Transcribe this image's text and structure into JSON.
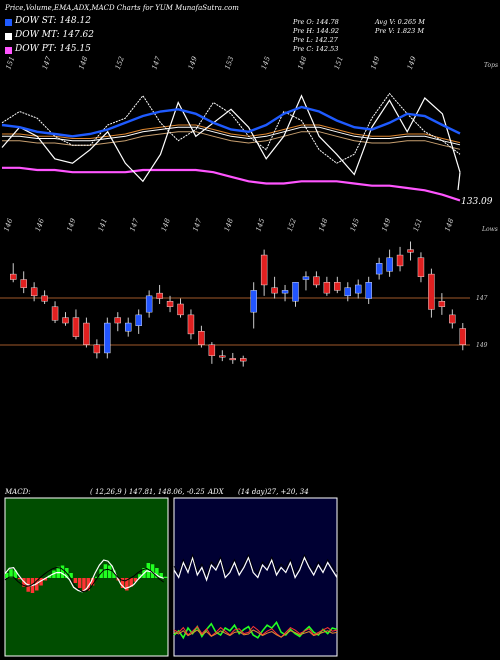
{
  "header": {
    "title": "Price,Volume,EMA,ADX,MACD Charts for YUM MunafaSutra.com"
  },
  "legend": [
    {
      "label": "DOW ST: 148.12",
      "color": "#1f5bff"
    },
    {
      "label": "DOW MT: 147.62",
      "color": "#ffffff"
    },
    {
      "label": "DOW PT: 145.15",
      "color": "#ff55ff"
    }
  ],
  "info": {
    "line1_left": "Pre  O: 144.78",
    "line2_left": "Pre  H: 144.92",
    "line3_left": "Pre  L: 142.27",
    "line4_left": "Pre  C: 142.53",
    "line1_right": "Avg V: 0.265 M",
    "line2_right": "Pre  V: 1.823 M"
  },
  "top_label": "Tops",
  "lower_label": "Lows",
  "price_tag": "133.09",
  "right_labels": [
    "147",
    "149"
  ],
  "macd_label": "MACD:",
  "macd_params": "( 12,26,9 ) 147.81, 148.06, -0.25",
  "adx_label": "ADX",
  "adx_params": "(14 day)27, +20, 34",
  "chart_data": [
    {
      "type": "line",
      "title": "Price,Volume,EMA,ADX,MACD Charts for YUM",
      "top_tick_labels": [
        "151",
        "147",
        "148",
        "152",
        "147",
        "149",
        "153",
        "145",
        "148",
        "151",
        "149",
        "149"
      ],
      "series": [
        {
          "name": "DOW ST",
          "values": [
            148.5,
            148.4,
            148.2,
            148.1,
            148.0,
            148.1,
            148.3,
            148.6,
            148.9,
            149.1,
            149.2,
            149.0,
            148.6,
            148.3,
            148.2,
            148.5,
            149.0,
            149.3,
            149.1,
            148.7,
            148.4,
            148.3,
            148.6,
            149.0,
            148.9,
            148.5,
            148.12
          ]
        },
        {
          "name": "DOW MT",
          "values": [
            148.0,
            148.0,
            147.9,
            147.9,
            147.8,
            147.8,
            147.9,
            148.0,
            148.2,
            148.3,
            148.4,
            148.4,
            148.2,
            148.0,
            147.9,
            148.0,
            148.2,
            148.4,
            148.4,
            148.2,
            148.0,
            147.9,
            147.9,
            148.0,
            148.0,
            147.8,
            147.62
          ]
        },
        {
          "name": "DOW PT",
          "values": [
            146.6,
            146.6,
            146.5,
            146.5,
            146.4,
            146.4,
            146.4,
            146.4,
            146.5,
            146.5,
            146.5,
            146.5,
            146.4,
            146.2,
            146.0,
            145.9,
            145.9,
            146.0,
            146.0,
            146.0,
            145.9,
            145.8,
            145.8,
            145.7,
            145.6,
            145.4,
            145.15
          ]
        }
      ],
      "price_line_label": "133.09"
    },
    {
      "type": "candlestick",
      "bottom_tick_labels": [
        "146",
        "146",
        "149",
        "141",
        "147",
        "148",
        "147",
        "148",
        "145",
        "152",
        "148",
        "145",
        "149",
        "151",
        "148"
      ],
      "levels": [
        147,
        149
      ],
      "candles": [
        {
          "o": 148.6,
          "h": 149.0,
          "l": 148.3,
          "c": 148.4,
          "color": "red"
        },
        {
          "o": 148.4,
          "h": 148.7,
          "l": 147.9,
          "c": 148.1,
          "color": "red"
        },
        {
          "o": 148.1,
          "h": 148.3,
          "l": 147.6,
          "c": 147.8,
          "color": "red"
        },
        {
          "o": 147.8,
          "h": 148.0,
          "l": 147.5,
          "c": 147.6,
          "color": "red"
        },
        {
          "o": 147.4,
          "h": 147.6,
          "l": 146.8,
          "c": 146.9,
          "color": "red"
        },
        {
          "o": 147.0,
          "h": 147.2,
          "l": 146.7,
          "c": 146.8,
          "color": "red"
        },
        {
          "o": 147.0,
          "h": 147.3,
          "l": 146.2,
          "c": 146.3,
          "color": "red"
        },
        {
          "o": 146.8,
          "h": 147.0,
          "l": 145.9,
          "c": 146.0,
          "color": "red"
        },
        {
          "o": 146.0,
          "h": 146.2,
          "l": 145.5,
          "c": 145.7,
          "color": "red"
        },
        {
          "o": 145.7,
          "h": 147.0,
          "l": 145.5,
          "c": 146.8,
          "color": "blue"
        },
        {
          "o": 146.8,
          "h": 147.2,
          "l": 146.5,
          "c": 147.0,
          "color": "red"
        },
        {
          "o": 146.5,
          "h": 147.0,
          "l": 146.3,
          "c": 146.8,
          "color": "blue"
        },
        {
          "o": 146.7,
          "h": 147.3,
          "l": 146.4,
          "c": 147.1,
          "color": "blue"
        },
        {
          "o": 147.2,
          "h": 148.0,
          "l": 147.0,
          "c": 147.8,
          "color": "blue"
        },
        {
          "o": 147.9,
          "h": 148.2,
          "l": 147.5,
          "c": 147.7,
          "color": "red"
        },
        {
          "o": 147.6,
          "h": 147.8,
          "l": 147.2,
          "c": 147.4,
          "color": "red"
        },
        {
          "o": 147.5,
          "h": 147.7,
          "l": 147.0,
          "c": 147.1,
          "color": "red"
        },
        {
          "o": 147.1,
          "h": 147.3,
          "l": 146.2,
          "c": 146.4,
          "color": "red"
        },
        {
          "o": 146.5,
          "h": 146.7,
          "l": 145.9,
          "c": 146.0,
          "color": "red"
        },
        {
          "o": 146.0,
          "h": 146.1,
          "l": 145.3,
          "c": 145.6,
          "color": "red"
        },
        {
          "o": 145.6,
          "h": 145.8,
          "l": 145.4,
          "c": 145.6,
          "color": "red"
        },
        {
          "o": 145.5,
          "h": 145.7,
          "l": 145.3,
          "c": 145.5,
          "color": "red"
        },
        {
          "o": 145.5,
          "h": 145.6,
          "l": 145.2,
          "c": 145.4,
          "color": "red"
        },
        {
          "o": 147.2,
          "h": 148.3,
          "l": 146.6,
          "c": 148.0,
          "color": "blue"
        },
        {
          "o": 149.3,
          "h": 149.5,
          "l": 147.8,
          "c": 148.2,
          "color": "red"
        },
        {
          "o": 148.1,
          "h": 148.5,
          "l": 147.7,
          "c": 147.9,
          "color": "red"
        },
        {
          "o": 148.0,
          "h": 148.2,
          "l": 147.6,
          "c": 147.9,
          "color": "blue"
        },
        {
          "o": 147.6,
          "h": 148.3,
          "l": 147.4,
          "c": 148.3,
          "color": "blue"
        },
        {
          "o": 148.4,
          "h": 148.7,
          "l": 148.0,
          "c": 148.5,
          "color": "blue"
        },
        {
          "o": 148.5,
          "h": 148.7,
          "l": 148.1,
          "c": 148.2,
          "color": "red"
        },
        {
          "o": 148.3,
          "h": 148.5,
          "l": 147.8,
          "c": 147.9,
          "color": "red"
        },
        {
          "o": 148.3,
          "h": 148.5,
          "l": 147.9,
          "c": 148.0,
          "color": "red"
        },
        {
          "o": 147.8,
          "h": 148.3,
          "l": 147.6,
          "c": 148.1,
          "color": "blue"
        },
        {
          "o": 148.2,
          "h": 148.4,
          "l": 147.7,
          "c": 147.9,
          "color": "blue"
        },
        {
          "o": 147.7,
          "h": 148.5,
          "l": 147.5,
          "c": 148.3,
          "color": "blue"
        },
        {
          "o": 148.6,
          "h": 149.2,
          "l": 148.4,
          "c": 149.0,
          "color": "blue"
        },
        {
          "o": 149.2,
          "h": 149.5,
          "l": 148.5,
          "c": 148.7,
          "color": "blue"
        },
        {
          "o": 148.9,
          "h": 149.6,
          "l": 148.7,
          "c": 149.3,
          "color": "red"
        },
        {
          "o": 149.4,
          "h": 149.8,
          "l": 149.1,
          "c": 149.5,
          "color": "red"
        },
        {
          "o": 149.2,
          "h": 149.4,
          "l": 148.3,
          "c": 148.5,
          "color": "red"
        },
        {
          "o": 148.6,
          "h": 148.8,
          "l": 147.0,
          "c": 147.3,
          "color": "red"
        },
        {
          "o": 147.4,
          "h": 147.9,
          "l": 147.1,
          "c": 147.6,
          "color": "red"
        },
        {
          "o": 147.1,
          "h": 147.3,
          "l": 146.6,
          "c": 146.8,
          "color": "red"
        },
        {
          "o": 146.6,
          "h": 146.8,
          "l": 145.8,
          "c": 146.0,
          "color": "red"
        }
      ]
    },
    {
      "type": "bar",
      "title": "MACD",
      "params": "(12,26,9) 147.81, 148.06, -0.25",
      "histogram": [
        0.2,
        0.35,
        0.3,
        -0.05,
        -0.35,
        -0.55,
        -0.6,
        -0.5,
        -0.3,
        -0.1,
        0.1,
        0.3,
        0.45,
        0.5,
        0.4,
        0.2,
        -0.2,
        -0.4,
        -0.55,
        -0.5,
        -0.3,
        0.05,
        0.35,
        0.55,
        0.5,
        0.3,
        -0.1,
        -0.4,
        -0.5,
        -0.35,
        -0.15,
        0.15,
        0.4,
        0.6,
        0.55,
        0.4,
        0.2,
        0.05
      ]
    },
    {
      "type": "line",
      "title": "ADX",
      "params": "(14 day)27, +20, 34",
      "series": [
        {
          "name": "ADX",
          "values": [
            30,
            27,
            33,
            29,
            35,
            28,
            31,
            26,
            32,
            30,
            34,
            27,
            29,
            33,
            28,
            31,
            35,
            29,
            27,
            32,
            30,
            34,
            28,
            31,
            29,
            33,
            27,
            30,
            35,
            31,
            28,
            32,
            29,
            33,
            30,
            27
          ]
        },
        {
          "name": "+DI",
          "values": [
            20,
            22,
            18,
            24,
            21,
            17,
            23,
            19,
            25,
            22,
            18,
            21,
            24,
            20,
            19,
            23,
            22,
            17,
            20,
            24,
            21,
            19,
            23,
            26,
            22,
            18,
            20,
            23,
            21,
            19,
            24,
            22,
            20,
            18,
            21,
            20
          ]
        },
        {
          "name": "-DI",
          "values": [
            30,
            33,
            28,
            35,
            31,
            36,
            29,
            34,
            38,
            32,
            30,
            35,
            33,
            37,
            31,
            34,
            36,
            30,
            28,
            33,
            37,
            35,
            39,
            32,
            30,
            34,
            31,
            29,
            33,
            36,
            32,
            30,
            34,
            31,
            35,
            34
          ]
        }
      ]
    }
  ]
}
